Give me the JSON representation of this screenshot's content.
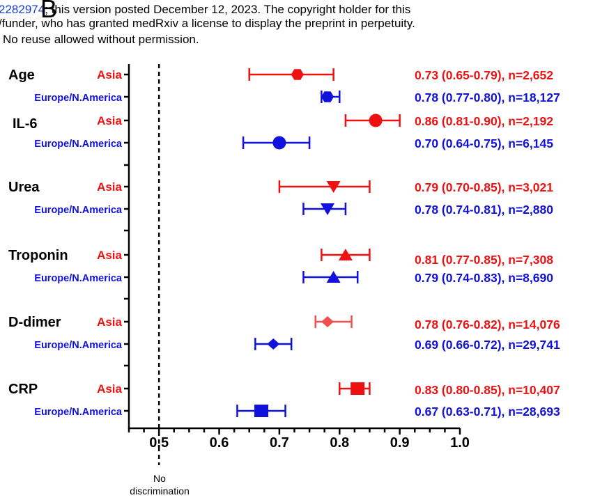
{
  "banner": {
    "line1_doi": "2282974",
    "line1_rest": "; this version posted December 12, 2023. The copyright holder for this",
    "line2": "/funder, who has granted medRxiv a license to display the preprint in perpetuity.",
    "line3": "No reuse allowed without permission.",
    "panel_letter": "B"
  },
  "reference_line": {
    "x": 0.5,
    "label_line1": "No",
    "label_line2": "discrimination"
  },
  "colors": {
    "asia": "#ee1111",
    "asia_light": "#f05050",
    "europe": "#1111dd",
    "axis": "#000000"
  },
  "chart_data": {
    "type": "forest",
    "xlim": [
      0.45,
      1.0
    ],
    "xticks": [
      "0.5",
      "0.6",
      "0.7",
      "0.8",
      "0.9",
      "1.0"
    ],
    "xtick_values": [
      0.5,
      0.6,
      0.7,
      0.8,
      0.9,
      1.0
    ],
    "groups": [
      {
        "name": "Age",
        "marker": "hexagon",
        "rows": [
          {
            "region": "Asia",
            "est": 0.73,
            "lo": 0.65,
            "hi": 0.79,
            "label": "0.73 (0.65-0.79), n=2,652",
            "color": "#ee1111"
          },
          {
            "region": "Europe/N.America",
            "est": 0.78,
            "lo": 0.77,
            "hi": 0.8,
            "label": "0.78 (0.77-0.80), n=18,127",
            "color": "#1111dd"
          }
        ]
      },
      {
        "name": "IL-6",
        "marker": "circle",
        "rows": [
          {
            "region": "Asia",
            "est": 0.86,
            "lo": 0.81,
            "hi": 0.9,
            "label": "0.86 (0.81-0.90), n=2,192",
            "color": "#ee1111"
          },
          {
            "region": "Europe/N.America",
            "est": 0.7,
            "lo": 0.64,
            "hi": 0.75,
            "label": "0.70 (0.64-0.75), n=6,145",
            "color": "#1111dd"
          }
        ]
      },
      {
        "name": "Urea",
        "marker": "triangle-down",
        "rows": [
          {
            "region": "Asia",
            "est": 0.79,
            "lo": 0.7,
            "hi": 0.85,
            "label": "0.79 (0.70-0.85), n=3,021",
            "color": "#ee1111"
          },
          {
            "region": "Europe/N.America",
            "est": 0.78,
            "lo": 0.74,
            "hi": 0.81,
            "label": "0.78 (0.74-0.81), n=2,880",
            "color": "#1111dd"
          }
        ]
      },
      {
        "name": "Troponin",
        "marker": "triangle-up",
        "rows": [
          {
            "region": "Asia",
            "est": 0.81,
            "lo": 0.77,
            "hi": 0.85,
            "label": "0.81 (0.77-0.85), n=7,308",
            "color": "#ee1111"
          },
          {
            "region": "Europe/N.America",
            "est": 0.79,
            "lo": 0.74,
            "hi": 0.83,
            "label": "0.79 (0.74-0.83), n=8,690",
            "color": "#1111dd"
          }
        ]
      },
      {
        "name": "D-dimer",
        "marker": "diamond",
        "rows": [
          {
            "region": "Asia",
            "est": 0.78,
            "lo": 0.76,
            "hi": 0.82,
            "label": "0.78 (0.76-0.82), n=14,076",
            "color": "#f05050"
          },
          {
            "region": "Europe/N.America",
            "est": 0.69,
            "lo": 0.66,
            "hi": 0.72,
            "label": "0.69 (0.66-0.72), n=29,741",
            "color": "#1111dd"
          }
        ]
      },
      {
        "name": "CRP",
        "marker": "square",
        "rows": [
          {
            "region": "Asia",
            "est": 0.83,
            "lo": 0.8,
            "hi": 0.85,
            "label": "0.83 (0.80-0.85), n=10,407",
            "color": "#ee1111"
          },
          {
            "region": "Europe/N.America",
            "est": 0.67,
            "lo": 0.63,
            "hi": 0.71,
            "label": "0.67 (0.63-0.71), n=28,693",
            "color": "#1111dd"
          }
        ]
      }
    ]
  }
}
